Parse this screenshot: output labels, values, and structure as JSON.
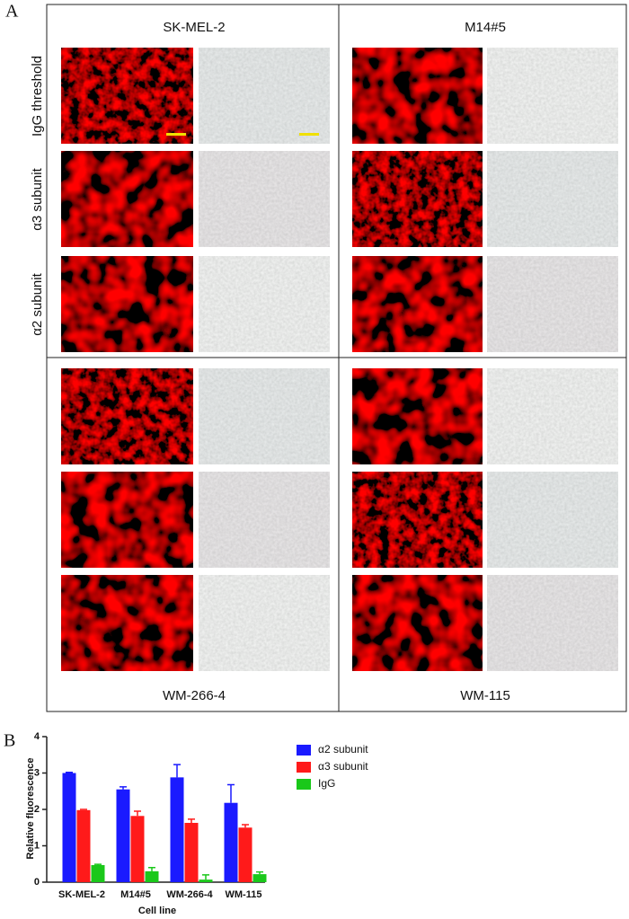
{
  "panel_a": {
    "label": "A",
    "cell_lines": [
      "SK-MEL-2",
      "M14#5",
      "WM-266-4",
      "WM-115"
    ],
    "row_labels": [
      "IgG threshold",
      "α3 subunit",
      "α2 subunit"
    ]
  },
  "panel_b": {
    "label": "B"
  },
  "chart_data": {
    "type": "bar",
    "y_label": "Relative fluorescence",
    "x_label": "Cell line",
    "categories": [
      "SK-MEL-2",
      "M14#5",
      "WM-266-4",
      "WM-115"
    ],
    "series": [
      {
        "name": "α2 subunit",
        "color": "#1a1aff",
        "values": [
          3.0,
          2.55,
          2.88,
          2.18
        ],
        "errors": [
          0.02,
          0.07,
          0.35,
          0.5
        ]
      },
      {
        "name": "α3 subunit",
        "color": "#ff1a1a",
        "values": [
          1.98,
          1.82,
          1.63,
          1.5
        ],
        "errors": [
          0.02,
          0.13,
          0.1,
          0.08
        ]
      },
      {
        "name": "IgG",
        "color": "#1ac81a",
        "values": [
          0.47,
          0.3,
          0.07,
          0.22
        ],
        "errors": [
          0.02,
          0.1,
          0.13,
          0.06
        ]
      }
    ],
    "ylim": [
      0,
      4
    ],
    "yticks": [
      0,
      1,
      2,
      3,
      4
    ],
    "grid": false,
    "legend": "right"
  }
}
